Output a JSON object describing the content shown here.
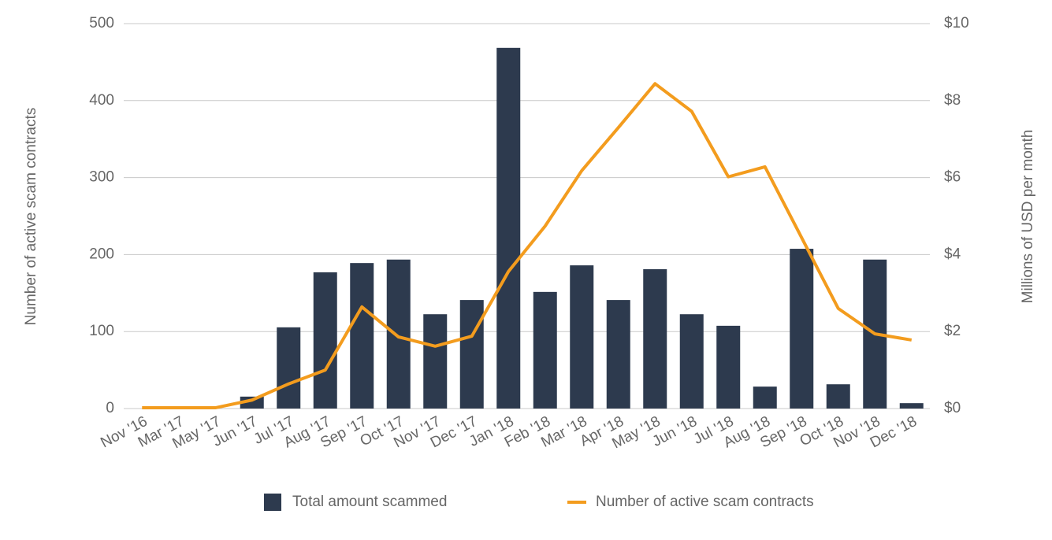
{
  "chart_data": {
    "type": "bar_line",
    "y_label": "Number of active scam contracts",
    "y2_label": "Millions of USD per month",
    "categories": [
      "Nov '16",
      "Mar '17",
      "May '17",
      "Jun '17",
      "Jul '17",
      "Aug '17",
      "Sep '17",
      "Oct '17",
      "Nov '17",
      "Dec '17",
      "Jan '18",
      "Feb '18",
      "Mar '18",
      "Apr '18",
      "May '18",
      "Jun '18",
      "Jul '18",
      "Aug '18",
      "Sep '18",
      "Oct '18",
      "Nov '18",
      "Dec '18"
    ],
    "series": [
      {
        "name": "Total amount scammed",
        "type": "bar",
        "axis": "y2",
        "color": "#2d3a4e",
        "values": [
          0,
          0,
          0,
          0.31,
          2.11,
          3.54,
          3.78,
          3.87,
          2.45,
          2.82,
          9.37,
          3.03,
          3.72,
          2.82,
          3.62,
          2.45,
          2.15,
          0.57,
          4.15,
          0.63,
          3.87,
          0.14
        ]
      },
      {
        "name": "Number of active scam contracts",
        "type": "line",
        "axis": "y",
        "color": "#f39c1e",
        "values": [
          1,
          1,
          1,
          11,
          32,
          50,
          132,
          93,
          81,
          94,
          178,
          237,
          309,
          365,
          422,
          386,
          301,
          314,
          222,
          130,
          97,
          89
        ]
      }
    ],
    "ylim": [
      0,
      500
    ],
    "yticks": [
      0,
      100,
      200,
      300,
      400,
      500
    ],
    "y2lim": [
      0,
      10
    ],
    "y2ticks": [
      {
        "value": 0,
        "label": "$0"
      },
      {
        "value": 2,
        "label": "$2"
      },
      {
        "value": 4,
        "label": "$4"
      },
      {
        "value": 6,
        "label": "$6"
      },
      {
        "value": 8,
        "label": "$8"
      },
      {
        "value": 10,
        "label": "$10"
      }
    ],
    "grid": true,
    "legend": "bottom"
  }
}
